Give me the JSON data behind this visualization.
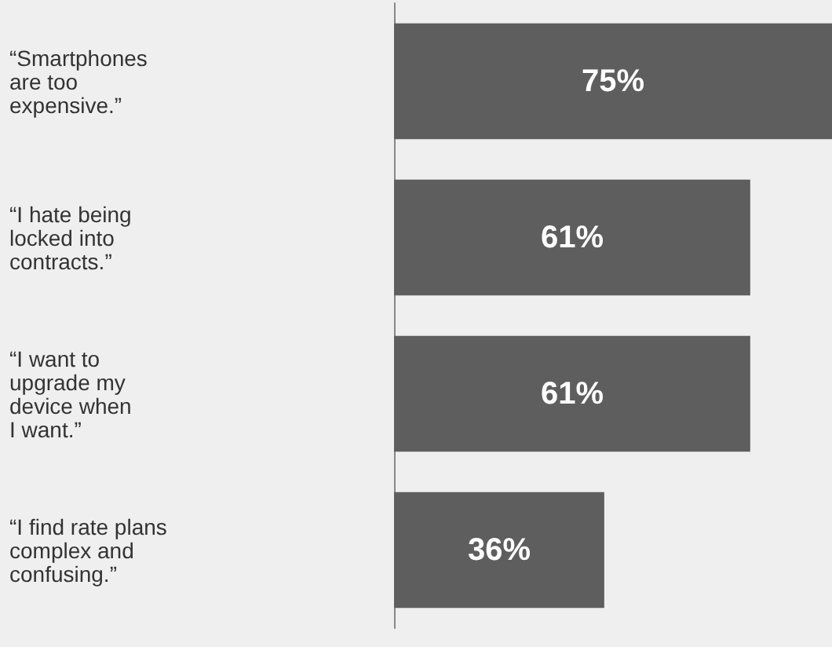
{
  "chart_data": {
    "type": "bar",
    "orientation": "horizontal",
    "categories": [
      "“Smartphones\nare too\nexpensive.”",
      "“I hate being\nlocked into\ncontracts.”",
      "“I want to\nupgrade my\ndevice when\nI want.”",
      "“I find rate plans\ncomplex and\nconfusing.”"
    ],
    "values": [
      75,
      61,
      61,
      36
    ],
    "value_labels": [
      "75%",
      "61%",
      "61%",
      "36%"
    ],
    "color": "#5e5e5e"
  }
}
